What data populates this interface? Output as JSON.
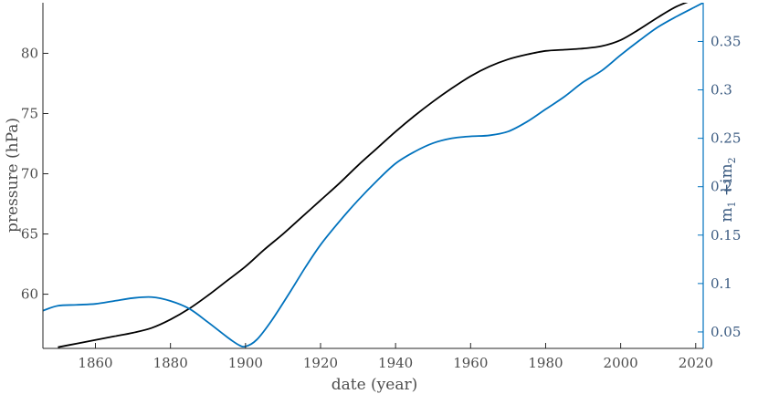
{
  "chart_data": {
    "type": "line",
    "xlabel": "date (year)",
    "ylabel_left": "pressure (hPa)",
    "ylabel_right_main": "m",
    "ylabel_right_sub1": "1",
    "ylabel_right_mid": " +im",
    "ylabel_right_sub2": "2",
    "xlim": [
      1846,
      2022
    ],
    "ylim_left": [
      55.5,
      84.2
    ],
    "ylim_right": [
      0.033,
      0.39
    ],
    "x_ticks": [
      1860,
      1880,
      1900,
      1920,
      1940,
      1960,
      1980,
      2000,
      2020
    ],
    "x_tick_labels": [
      "1860",
      "1880",
      "1900",
      "1920",
      "1940",
      "1960",
      "1980",
      "2000",
      "2020"
    ],
    "y_left_ticks": [
      60,
      65,
      70,
      75,
      80
    ],
    "y_left_tick_labels": [
      "60",
      "65",
      "70",
      "75",
      "80"
    ],
    "y_right_ticks": [
      0.05,
      0.1,
      0.15,
      0.2,
      0.25,
      0.3,
      0.35
    ],
    "y_right_tick_labels": [
      "0.05",
      "0.1",
      "0.15",
      "0.2",
      "0.25",
      "0.3",
      "0.35"
    ],
    "grid": false,
    "colors": {
      "left_axis": "#262626",
      "right_axis": "#0072BD",
      "series_left": "#000000",
      "series_right": "#0072BD"
    },
    "series": [
      {
        "axis": "left",
        "x": [
          1850,
          1855,
          1860,
          1865,
          1870,
          1875,
          1880,
          1885,
          1890,
          1895,
          1900,
          1905,
          1910,
          1915,
          1920,
          1925,
          1930,
          1935,
          1940,
          1945,
          1950,
          1955,
          1960,
          1965,
          1970,
          1975,
          1980,
          1985,
          1990,
          1995,
          2000,
          2005,
          2010,
          2015,
          2020
        ],
        "y": [
          55.6,
          55.9,
          56.2,
          56.5,
          56.8,
          57.2,
          57.9,
          58.8,
          59.9,
          61.1,
          62.3,
          63.7,
          65.0,
          66.4,
          67.8,
          69.2,
          70.7,
          72.1,
          73.5,
          74.8,
          76.0,
          77.1,
          78.1,
          78.9,
          79.5,
          79.9,
          80.2,
          80.3,
          80.4,
          80.6,
          81.1,
          82.0,
          83.0,
          83.9,
          84.5
        ]
      },
      {
        "axis": "right",
        "x": [
          1846,
          1850,
          1855,
          1860,
          1865,
          1870,
          1875,
          1880,
          1885,
          1890,
          1895,
          1898,
          1900,
          1903,
          1907,
          1912,
          1916,
          1920,
          1925,
          1930,
          1935,
          1940,
          1945,
          1950,
          1955,
          1960,
          1965,
          1970,
          1975,
          1980,
          1985,
          1990,
          1995,
          2000,
          2005,
          2010,
          2015,
          2020,
          2022
        ],
        "y": [
          0.072,
          0.077,
          0.078,
          0.079,
          0.082,
          0.085,
          0.086,
          0.082,
          0.074,
          0.06,
          0.045,
          0.037,
          0.035,
          0.042,
          0.062,
          0.092,
          0.117,
          0.14,
          0.164,
          0.186,
          0.206,
          0.224,
          0.236,
          0.245,
          0.25,
          0.252,
          0.253,
          0.257,
          0.267,
          0.28,
          0.293,
          0.308,
          0.32,
          0.336,
          0.351,
          0.365,
          0.376,
          0.386,
          0.39
        ]
      }
    ]
  }
}
